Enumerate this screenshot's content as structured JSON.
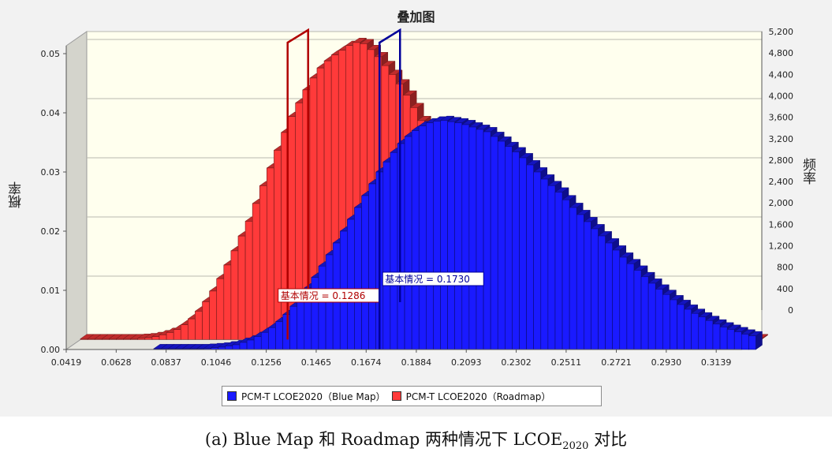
{
  "caption": {
    "prefix": "(a) Blue Map 和 Roadmap 两种情况下 LCOE",
    "subscript": "2020",
    "suffix": " 对比"
  },
  "chart_data": {
    "type": "bar",
    "title": "叠加图",
    "ylabel": "概率",
    "ylabel_right": "频率",
    "xlabel": "",
    "x_ticks": [
      "0.0419",
      "0.0628",
      "0.0837",
      "0.1046",
      "0.1256",
      "0.1465",
      "0.1674",
      "0.1884",
      "0.2093",
      "0.2302",
      "0.2511",
      "0.2721",
      "0.2930",
      "0.3139"
    ],
    "x_range": [
      0.0419,
      0.3244
    ],
    "y_ticks_left": [
      "0.00",
      "0.01",
      "0.02",
      "0.03",
      "0.04",
      "0.05"
    ],
    "y_range_left": [
      0,
      0.05
    ],
    "y_ticks_right": [
      "0",
      "400",
      "800",
      "1,200",
      "1,600",
      "2,000",
      "2,400",
      "2,800",
      "3,200",
      "3,600",
      "4,000",
      "4,400",
      "4,800",
      "5,200"
    ],
    "grid": true,
    "legend_position": "bottom-center",
    "series": [
      {
        "name": "PCM-T  LCOE2020（Blue Map）",
        "color": "#1a1aff",
        "bin_start": 0.0785,
        "bin_width": 0.003,
        "values": [
          0.0,
          0.0,
          0.0,
          0.0,
          0.0001,
          0.0001,
          0.0001,
          0.0002,
          0.0003,
          0.0004,
          0.0006,
          0.0008,
          0.0012,
          0.0016,
          0.0022,
          0.0029,
          0.0037,
          0.0047,
          0.0059,
          0.0073,
          0.0088,
          0.0104,
          0.0122,
          0.0141,
          0.016,
          0.018,
          0.02,
          0.022,
          0.024,
          0.026,
          0.028,
          0.03,
          0.0317,
          0.0333,
          0.0348,
          0.036,
          0.037,
          0.0378,
          0.0383,
          0.0386,
          0.0387,
          0.0385,
          0.0383,
          0.038,
          0.0376,
          0.0372,
          0.0368,
          0.036,
          0.0352,
          0.0343,
          0.0334,
          0.0324,
          0.0312,
          0.03,
          0.0288,
          0.0277,
          0.0266,
          0.0253,
          0.024,
          0.0228,
          0.0216,
          0.0204,
          0.0192,
          0.018,
          0.0168,
          0.0156,
          0.0145,
          0.0134,
          0.0123,
          0.0112,
          0.0102,
          0.0093,
          0.0084,
          0.0076,
          0.0068,
          0.0061,
          0.0055,
          0.0049,
          0.0043,
          0.0038,
          0.0034,
          0.003,
          0.0026,
          0.0023,
          0.002,
          0.0017,
          0.0015,
          0.0013,
          0.0011,
          0.0009,
          0.0008,
          0.0007,
          0.0006,
          0.0005,
          0.0004
        ]
      },
      {
        "name": "PCM-T  LCOE2020（Roadmap）",
        "color": "#ff3a3a",
        "bin_start": 0.0419,
        "bin_width": 0.003,
        "values": [
          0.0001,
          0.0001,
          0.0001,
          0.0001,
          0.0001,
          0.0001,
          0.0001,
          0.0001,
          0.0002,
          0.0003,
          0.0005,
          0.0008,
          0.0012,
          0.0017,
          0.0025,
          0.0035,
          0.0048,
          0.0064,
          0.0082,
          0.0103,
          0.0126,
          0.015,
          0.0175,
          0.02,
          0.023,
          0.026,
          0.029,
          0.032,
          0.035,
          0.0377,
          0.04,
          0.0422,
          0.0442,
          0.0459,
          0.0471,
          0.0481,
          0.0489,
          0.0497,
          0.0502,
          0.05,
          0.049,
          0.0478,
          0.0463,
          0.0448,
          0.0432,
          0.0413,
          0.0392,
          0.037,
          0.0345,
          0.032,
          0.0295,
          0.0268,
          0.024,
          0.0213,
          0.0186,
          0.016,
          0.0135,
          0.0112,
          0.0092,
          0.0074,
          0.0058,
          0.0045,
          0.0034,
          0.0025,
          0.0018,
          0.0013,
          0.0009,
          0.0006,
          0.0004,
          0.0003,
          0.0002,
          0.0001,
          0.0001,
          0.0001,
          0.0001,
          0.0001,
          0.0001,
          0.0001,
          0.0001,
          0.0001,
          0.0001,
          0.0001,
          0.0001,
          0.0001,
          0.0001,
          0.0001,
          0.0001,
          0.0001,
          0.0001,
          0.0001,
          0.0001,
          0.0001,
          0.0001,
          0.0001,
          0.0001
        ]
      }
    ],
    "markers": [
      {
        "label": "基本情况 = 0.1286",
        "x": 0.1286,
        "color": "#b00000"
      },
      {
        "label": "基本情况 = 0.1730",
        "x": 0.173,
        "color": "#000099"
      }
    ]
  }
}
